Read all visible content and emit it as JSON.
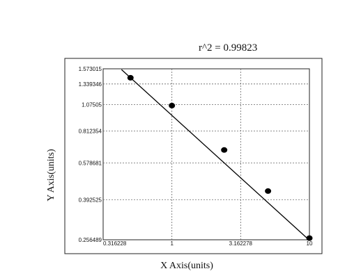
{
  "chart_data": {
    "type": "scatter",
    "annotation": "r^2  =  0.99823",
    "xlabel": "X Axis(units)",
    "ylabel": "Y Axis(units)",
    "x_scale": "log",
    "y_scale": "log",
    "xlim": [
      0.31622,
      10
    ],
    "ylim": [
      0.256489,
      1.573015
    ],
    "x_tick_labels": [
      "0.316228",
      "1",
      "3.162278",
      "10"
    ],
    "x_tick_values": [
      0.316228,
      1,
      3.162278,
      10
    ],
    "y_tick_labels": [
      "1.573015",
      "1.339346",
      "1.07505",
      "0.812354",
      "0.578681",
      "0.392525",
      "0.256489"
    ],
    "y_tick_values": [
      1.573015,
      1.339346,
      1.07505,
      0.812354,
      0.578681,
      0.392525,
      0.256489
    ],
    "grid": true,
    "points": [
      {
        "x": 0.5,
        "y": 1.43
      },
      {
        "x": 1.0,
        "y": 1.065
      },
      {
        "x": 2.4,
        "y": 0.665
      },
      {
        "x": 5.0,
        "y": 0.43
      },
      {
        "x": 10.0,
        "y": 0.261
      }
    ],
    "fit_line": [
      {
        "x": 0.43,
        "y": 1.56
      },
      {
        "x": 10.0,
        "y": 0.255
      }
    ]
  }
}
